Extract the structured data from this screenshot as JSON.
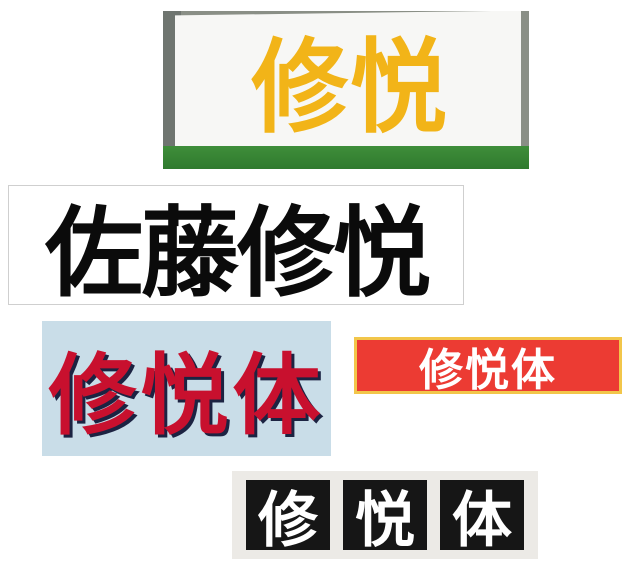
{
  "panels": [
    {
      "id": "yellow-sign",
      "chars": [
        "修",
        "悦"
      ],
      "colors": {
        "text": "#f2b418",
        "board": "#f7f7f5",
        "grass": "#3f8e3a"
      }
    },
    {
      "id": "black-white",
      "chars": [
        "佐",
        "藤",
        "修",
        "悦"
      ],
      "colors": {
        "text": "#0b0b0b",
        "background": "#ffffff"
      }
    },
    {
      "id": "red-on-blue",
      "chars": [
        "修",
        "悦",
        "体"
      ],
      "colors": {
        "text": "#c8102e",
        "shadow": "#1c2342",
        "background": "#c9dde8"
      }
    },
    {
      "id": "white-on-red",
      "chars": [
        "修",
        "悦",
        "体"
      ],
      "colors": {
        "text": "#ffffff",
        "background": "#ec3b33",
        "border": "#f2c64a"
      }
    },
    {
      "id": "white-on-black-blocks",
      "chars": [
        "修",
        "悦",
        "体"
      ],
      "colors": {
        "text": "#ffffff",
        "block": "#161616",
        "background": "#eceae6"
      }
    }
  ]
}
